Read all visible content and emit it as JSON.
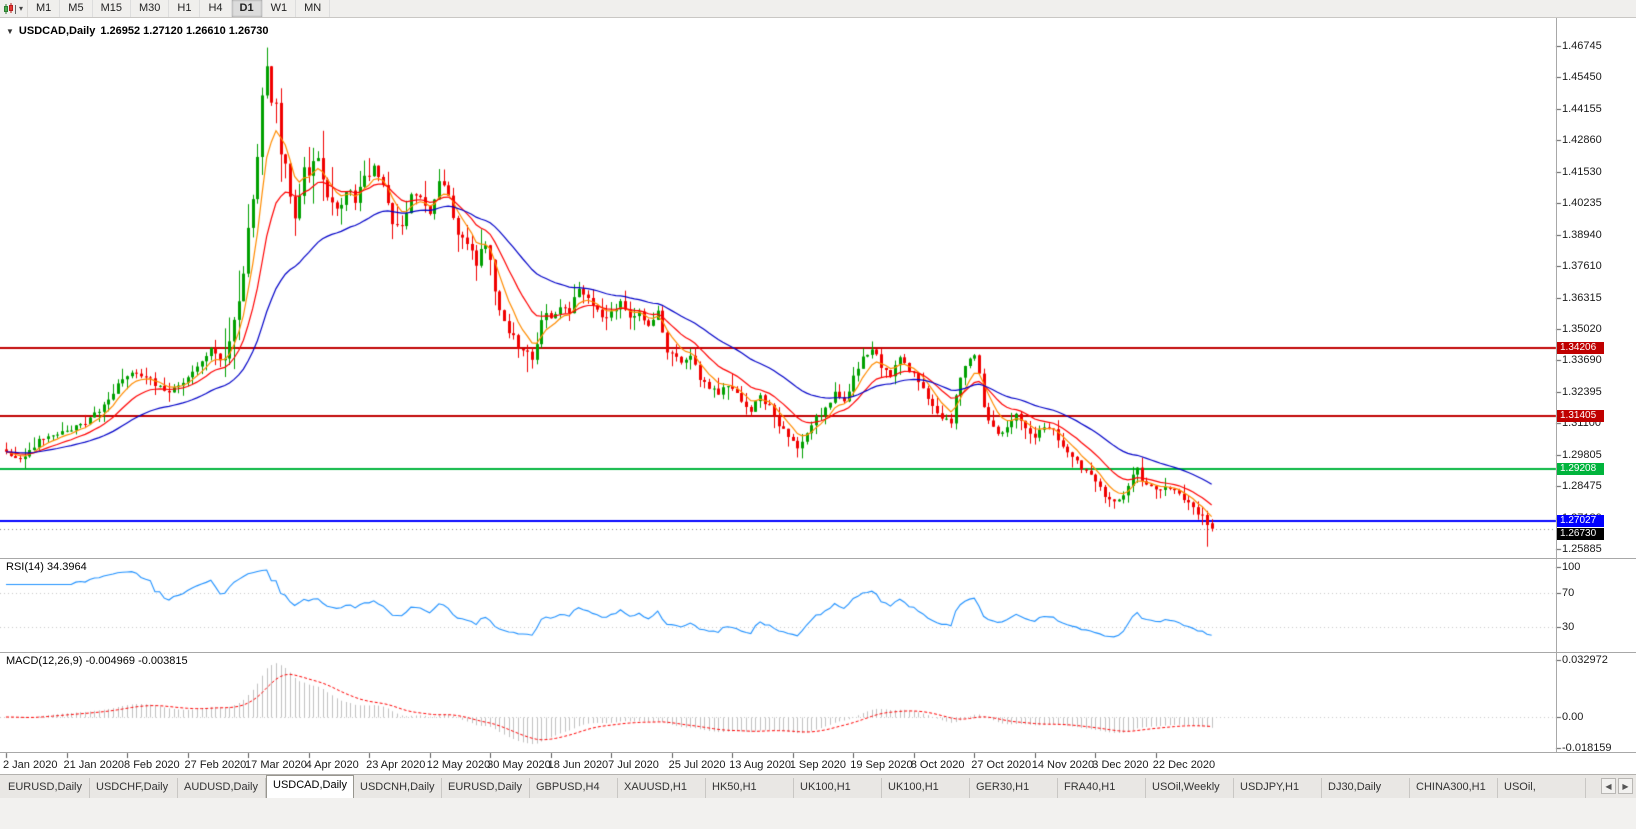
{
  "icons": {
    "caret_down": "▾",
    "collapse": "▼",
    "scroll_left": "◀",
    "scroll_right": "▶"
  },
  "toolbar": {
    "timeframes": [
      "M1",
      "M5",
      "M15",
      "M30",
      "H1",
      "H4",
      "D1",
      "W1",
      "MN"
    ],
    "active_timeframe": "D1"
  },
  "chart": {
    "symbol_period": "USDCAD,Daily",
    "ohlc_text": "1.26952 1.27120 1.26610 1.26730",
    "y_axis_labels": [
      "1.46745",
      "1.45450",
      "1.44155",
      "1.42860",
      "1.41530",
      "1.40235",
      "1.38940",
      "1.37610",
      "1.36315",
      "1.35020",
      "1.33690",
      "1.32395",
      "1.31100",
      "1.29805",
      "1.28475",
      "1.27180",
      "1.25885"
    ],
    "x_axis_labels": [
      "2 Jan 2020",
      "21 Jan 2020",
      "8 Feb 2020",
      "27 Feb 2020",
      "17 Mar 2020",
      "4 Apr 2020",
      "23 Apr 2020",
      "12 May 2020",
      "30 May 2020",
      "18 Jun 2020",
      "7 Jul 2020",
      "25 Jul 2020",
      "13 Aug 2020",
      "1 Sep 2020",
      "19 Sep 2020",
      "8 Oct 2020",
      "27 Oct 2020",
      "14 Nov 2020",
      "3 Dec 2020",
      "22 Dec 2020"
    ],
    "price_lines": [
      {
        "label": "1.34206",
        "price": 1.34206,
        "color": "#C00000",
        "kind": "horizontal-line"
      },
      {
        "label": "1.31405",
        "price": 1.31405,
        "color": "#C00000",
        "kind": "horizontal-line"
      },
      {
        "label": "1.29208",
        "price": 1.29208,
        "color": "#00B43C",
        "kind": "horizontal-line"
      },
      {
        "label": "1.27027",
        "price": 1.27027,
        "color": "#0000FF",
        "kind": "horizontal-line"
      },
      {
        "label": "1.26730",
        "price": 1.2673,
        "color": "#000000",
        "kind": "current-price"
      }
    ]
  },
  "rsi": {
    "label": "RSI(14) 34.3964",
    "indicator": "RSI",
    "period": 14,
    "value": 34.3964,
    "axis_labels": [
      "100",
      "70",
      "30"
    ]
  },
  "macd": {
    "label": "MACD(12,26,9) -0.004969 -0.003815",
    "indicator": "MACD",
    "settings": "12,26,9",
    "value_main": -0.004969,
    "value_signal": -0.003815,
    "axis_labels": [
      "0.032972",
      "0.00",
      "-0.018159"
    ]
  },
  "tabs": {
    "items": [
      "EURUSD,Daily",
      "USDCHF,Daily",
      "AUDUSD,Daily",
      "USDCAD,Daily",
      "USDCNH,Daily",
      "EURUSD,Daily",
      "GBPUSD,H4",
      "XAUUSD,H1",
      "HK50,H1",
      "UK100,H1",
      "UK100,H1",
      "GER30,H1",
      "FRA40,H1",
      "USOil,Weekly",
      "USDJPY,H1",
      "DJ30,Daily",
      "CHINA300,H1",
      "USOil,"
    ],
    "active_index": 3
  },
  "chart_data": {
    "type": "candlestick",
    "symbol": "USDCAD",
    "timeframe": "Daily",
    "current_bar": {
      "open": 1.26952,
      "high": 1.2712,
      "low": 1.2661,
      "close": 1.2673
    },
    "price_range_visible": [
      1.25885,
      1.46745
    ],
    "year_high": 1.4668,
    "bars_total": 260,
    "support_resistance": [
      1.34206,
      1.31405,
      1.29208,
      1.27027
    ],
    "close_anchors": [
      [
        0,
        1.299
      ],
      [
        3,
        1.2958
      ],
      [
        7,
        1.304
      ],
      [
        13,
        1.3078
      ],
      [
        17,
        1.311
      ],
      [
        21,
        1.3185
      ],
      [
        25,
        1.33
      ],
      [
        28,
        1.3325
      ],
      [
        31,
        1.3295
      ],
      [
        34,
        1.3235
      ],
      [
        38,
        1.328
      ],
      [
        41,
        1.334
      ],
      [
        44,
        1.342
      ],
      [
        46,
        1.339
      ],
      [
        48,
        1.343
      ],
      [
        49,
        1.356
      ],
      [
        51,
        1.372
      ],
      [
        52,
        1.392
      ],
      [
        53,
        1.401
      ],
      [
        54,
        1.4245
      ],
      [
        55,
        1.45
      ],
      [
        56,
        1.456
      ],
      [
        57,
        1.444
      ],
      [
        58,
        1.445
      ],
      [
        59,
        1.423
      ],
      [
        60,
        1.419
      ],
      [
        61,
        1.403
      ],
      [
        62,
        1.399
      ],
      [
        63,
        1.407
      ],
      [
        64,
        1.415
      ],
      [
        65,
        1.413
      ],
      [
        66,
        1.4165
      ],
      [
        67,
        1.4205
      ],
      [
        68,
        1.409
      ],
      [
        69,
        1.402
      ],
      [
        71,
        1.399
      ],
      [
        73,
        1.408
      ],
      [
        75,
        1.403
      ],
      [
        77,
        1.412
      ],
      [
        79,
        1.418
      ],
      [
        81,
        1.409
      ],
      [
        83,
        1.395
      ],
      [
        85,
        1.392
      ],
      [
        87,
        1.408
      ],
      [
        89,
        1.405
      ],
      [
        91,
        1.398
      ],
      [
        93,
        1.411
      ],
      [
        95,
        1.406
      ],
      [
        97,
        1.39
      ],
      [
        99,
        1.387
      ],
      [
        101,
        1.377
      ],
      [
        103,
        1.386
      ],
      [
        104,
        1.378
      ],
      [
        106,
        1.356
      ],
      [
        108,
        1.349
      ],
      [
        110,
        1.342
      ],
      [
        112,
        1.339
      ],
      [
        113,
        1.337
      ],
      [
        114,
        1.345
      ],
      [
        115,
        1.355
      ],
      [
        116,
        1.358
      ],
      [
        117,
        1.3545
      ],
      [
        119,
        1.36
      ],
      [
        121,
        1.356
      ],
      [
        123,
        1.368
      ],
      [
        125,
        1.362
      ],
      [
        127,
        1.358
      ],
      [
        129,
        1.3545
      ],
      [
        130,
        1.3575
      ],
      [
        132,
        1.361
      ],
      [
        134,
        1.354
      ],
      [
        136,
        1.358
      ],
      [
        138,
        1.351
      ],
      [
        140,
        1.357
      ],
      [
        142,
        1.341
      ],
      [
        143,
        1.34
      ],
      [
        145,
        1.335
      ],
      [
        147,
        1.339
      ],
      [
        149,
        1.33
      ],
      [
        151,
        1.326
      ],
      [
        153,
        1.323
      ],
      [
        155,
        1.327
      ],
      [
        156,
        1.325
      ],
      [
        158,
        1.321
      ],
      [
        160,
        1.317
      ],
      [
        162,
        1.322
      ],
      [
        164,
        1.318
      ],
      [
        166,
        1.311
      ],
      [
        168,
        1.306
      ],
      [
        169,
        1.304
      ],
      [
        170,
        1.2995
      ],
      [
        172,
        1.306
      ],
      [
        174,
        1.313
      ],
      [
        176,
        1.317
      ],
      [
        178,
        1.323
      ],
      [
        180,
        1.32
      ],
      [
        182,
        1.33
      ],
      [
        184,
        1.338
      ],
      [
        186,
        1.342
      ],
      [
        188,
        1.335
      ],
      [
        190,
        1.331
      ],
      [
        192,
        1.338
      ],
      [
        194,
        1.332
      ],
      [
        195,
        1.331
      ],
      [
        197,
        1.325
      ],
      [
        199,
        1.318
      ],
      [
        201,
        1.314
      ],
      [
        203,
        1.312
      ],
      [
        205,
        1.331
      ],
      [
        207,
        1.338
      ],
      [
        208,
        1.339
      ],
      [
        209,
        1.332
      ],
      [
        210,
        1.318
      ],
      [
        211,
        1.312
      ],
      [
        213,
        1.306
      ],
      [
        215,
        1.31
      ],
      [
        217,
        1.315
      ],
      [
        219,
        1.309
      ],
      [
        221,
        1.306
      ],
      [
        223,
        1.31
      ],
      [
        225,
        1.308
      ],
      [
        227,
        1.302
      ],
      [
        229,
        1.298
      ],
      [
        231,
        1.292
      ],
      [
        233,
        1.29
      ],
      [
        234,
        1.287
      ],
      [
        236,
        1.281
      ],
      [
        238,
        1.278
      ],
      [
        240,
        1.282
      ],
      [
        242,
        1.289
      ],
      [
        243,
        1.292
      ],
      [
        244,
        1.288
      ],
      [
        245,
        1.285
      ],
      [
        247,
        1.284
      ],
      [
        249,
        1.2845
      ],
      [
        251,
        1.283
      ],
      [
        253,
        1.28
      ],
      [
        255,
        1.276
      ],
      [
        257,
        1.272
      ],
      [
        259,
        1.2673
      ]
    ],
    "moving_averages": [
      {
        "period": 6,
        "method": "ema",
        "color": "#FF8C00"
      },
      {
        "period": 14,
        "method": "ema",
        "color": "#FF0000"
      },
      {
        "period": 34,
        "method": "ema",
        "color": "#0000C8"
      }
    ],
    "colors": {
      "up": "#00A000",
      "down": "#F00000",
      "rsi_line": "#1E90FF",
      "macd_hist": "#C0C0C0",
      "macd_signal": "#FF0000"
    }
  }
}
